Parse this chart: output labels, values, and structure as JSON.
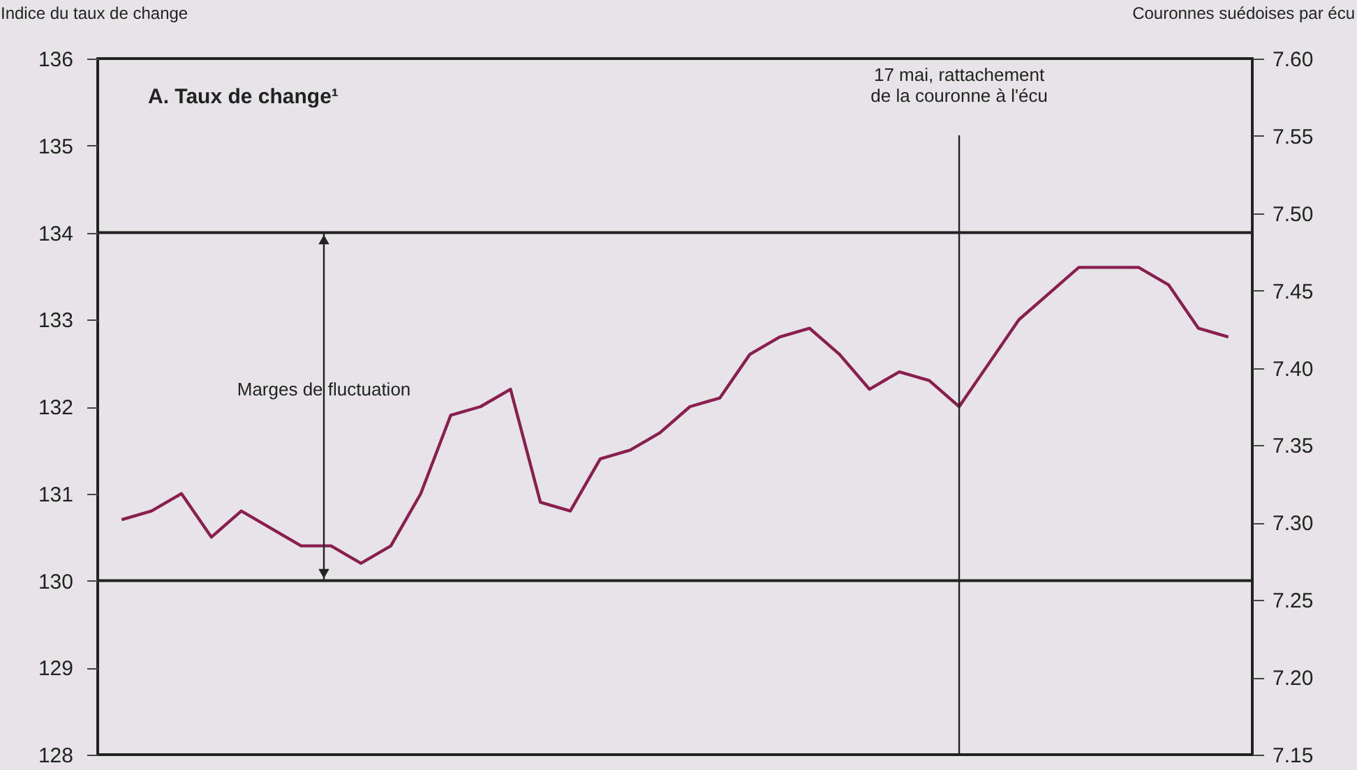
{
  "chart_data": {
    "type": "line",
    "title": "A. Taux de change¹",
    "ylabel": "Indice du taux de change",
    "y2label": "Couronnes suédoises par écu",
    "categories": [
      null,
      null,
      null,
      null,
      null,
      null,
      null,
      null,
      null,
      null,
      null,
      null,
      null,
      null,
      null,
      null,
      null,
      null,
      null,
      null,
      null,
      null,
      null,
      null,
      null,
      null,
      null,
      null,
      null,
      null,
      null,
      null,
      null,
      null,
      null,
      null,
      null,
      null
    ],
    "series": [
      {
        "color": "#8a1f4f",
        "values": [
          130.7,
          130.8,
          131.0,
          130.5,
          130.8,
          130.6,
          130.4,
          130.4,
          130.2,
          130.4,
          131.0,
          131.9,
          132.0,
          132.2,
          130.9,
          130.8,
          131.4,
          131.5,
          131.7,
          132.0,
          132.1,
          132.6,
          132.8,
          132.9,
          132.6,
          132.2,
          132.4,
          132.3,
          132.0,
          132.5,
          133.0,
          133.3,
          133.6,
          133.6,
          133.6,
          133.4,
          132.9,
          132.8
        ]
      }
    ],
    "ylim": [
      128,
      136
    ],
    "yticks": [
      128,
      129,
      130,
      131,
      132,
      133,
      134,
      135,
      136
    ],
    "y2lim": [
      7.15,
      7.6
    ],
    "y2ticks": [
      7.15,
      {
        "value": 7.2,
        "label": "7.20"
      },
      7.25,
      {
        "value": 7.3,
        "label": "7.30"
      },
      7.35,
      {
        "value": 7.4,
        "label": "7.40"
      },
      7.45,
      {
        "value": 7.5,
        "label": "7.50"
      },
      7.55,
      {
        "value": 7.6,
        "label": "7.60"
      }
    ],
    "ref_lines": [
      {
        "axis": "y",
        "value": 134,
        "color": "#222222"
      },
      {
        "axis": "y",
        "value": 130,
        "color": "#222222"
      }
    ],
    "annotations": [
      "Marges de fluctuation",
      "17 mai, rattachement\nde la couronne à l'écu"
    ],
    "grid": false,
    "marker": "none",
    "line_style": "solid"
  }
}
